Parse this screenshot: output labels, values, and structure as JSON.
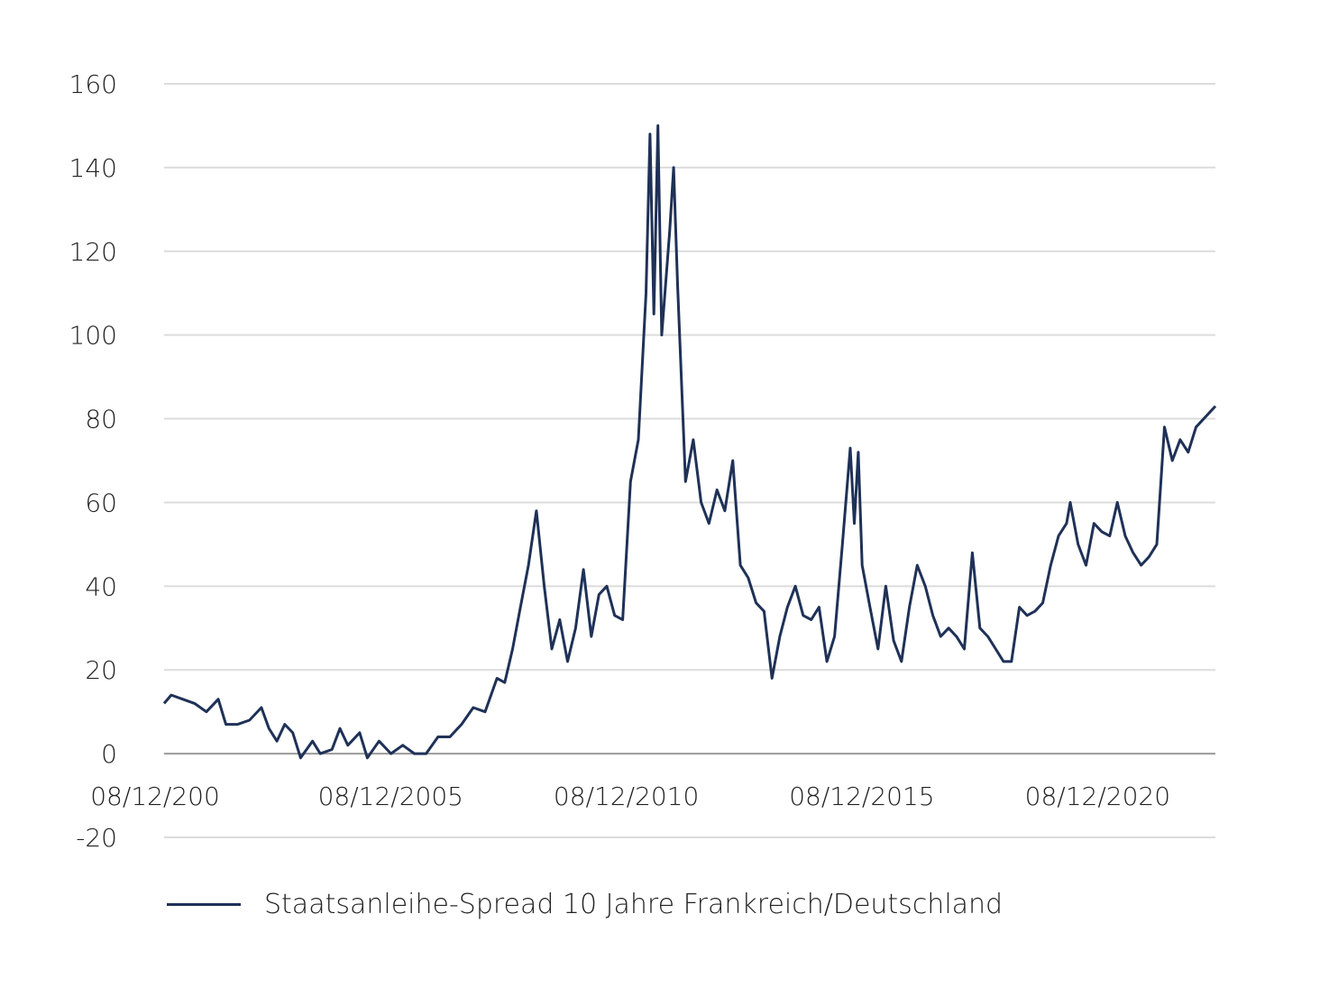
{
  "chart_data": {
    "type": "line",
    "title": "",
    "xlabel": "",
    "ylabel": "",
    "ylim": [
      -20,
      160
    ],
    "y_ticks": [
      160,
      140,
      120,
      100,
      80,
      60,
      40,
      20,
      0,
      -20
    ],
    "y_tick_labels": [
      "160",
      "140",
      "120",
      "100",
      "80",
      "60",
      "40",
      "20",
      "0",
      "-20"
    ],
    "x_tick_labels": [
      "08/12/200",
      "08/12/2005",
      "08/12/2010",
      "08/12/2015",
      "08/12/2020"
    ],
    "x_tick_dates": [
      "2000-12-08",
      "2005-12-08",
      "2010-12-08",
      "2015-12-08",
      "2020-12-08"
    ],
    "xlim": [
      "2000-12-08",
      "2023-03-31"
    ],
    "grid": true,
    "legend_position": "bottom-left",
    "series": [
      {
        "name": "Staatsanleihe-Spread 10 Jahre Frankreich/Deutschland",
        "color": "#1f3157",
        "points": [
          [
            "2000-12-08",
            12
          ],
          [
            "2001-02-01",
            14
          ],
          [
            "2001-05-01",
            13
          ],
          [
            "2001-08-01",
            12
          ],
          [
            "2001-11-01",
            10
          ],
          [
            "2002-02-01",
            13
          ],
          [
            "2002-04-01",
            7
          ],
          [
            "2002-07-01",
            7
          ],
          [
            "2002-10-01",
            8
          ],
          [
            "2003-01-01",
            11
          ],
          [
            "2003-03-01",
            6
          ],
          [
            "2003-05-01",
            3
          ],
          [
            "2003-07-01",
            7
          ],
          [
            "2003-09-01",
            5
          ],
          [
            "2003-11-01",
            -1
          ],
          [
            "2004-02-01",
            3
          ],
          [
            "2004-04-01",
            0
          ],
          [
            "2004-07-01",
            1
          ],
          [
            "2004-09-01",
            6
          ],
          [
            "2004-11-01",
            2
          ],
          [
            "2005-02-01",
            5
          ],
          [
            "2005-04-01",
            -1
          ],
          [
            "2005-07-01",
            3
          ],
          [
            "2005-10-01",
            0
          ],
          [
            "2006-01-01",
            2
          ],
          [
            "2006-04-01",
            0
          ],
          [
            "2006-07-01",
            0
          ],
          [
            "2006-10-01",
            4
          ],
          [
            "2007-01-01",
            4
          ],
          [
            "2007-04-01",
            7
          ],
          [
            "2007-07-01",
            11
          ],
          [
            "2007-10-01",
            10
          ],
          [
            "2008-01-01",
            18
          ],
          [
            "2008-03-01",
            17
          ],
          [
            "2008-05-01",
            25
          ],
          [
            "2008-07-01",
            35
          ],
          [
            "2008-09-01",
            45
          ],
          [
            "2008-11-01",
            58
          ],
          [
            "2009-01-01",
            40
          ],
          [
            "2009-03-01",
            25
          ],
          [
            "2009-05-01",
            32
          ],
          [
            "2009-07-01",
            22
          ],
          [
            "2009-09-01",
            30
          ],
          [
            "2009-11-01",
            44
          ],
          [
            "2010-01-01",
            28
          ],
          [
            "2010-03-01",
            38
          ],
          [
            "2010-05-01",
            40
          ],
          [
            "2010-07-01",
            33
          ],
          [
            "2010-09-01",
            32
          ],
          [
            "2010-11-01",
            65
          ],
          [
            "2011-01-01",
            75
          ],
          [
            "2011-03-01",
            110
          ],
          [
            "2011-04-01",
            148
          ],
          [
            "2011-05-01",
            105
          ],
          [
            "2011-06-01",
            150
          ],
          [
            "2011-07-01",
            100
          ],
          [
            "2011-09-01",
            125
          ],
          [
            "2011-10-01",
            140
          ],
          [
            "2011-11-01",
            112
          ],
          [
            "2012-01-01",
            65
          ],
          [
            "2012-03-01",
            75
          ],
          [
            "2012-05-01",
            60
          ],
          [
            "2012-07-01",
            55
          ],
          [
            "2012-09-01",
            63
          ],
          [
            "2012-11-01",
            58
          ],
          [
            "2013-01-01",
            70
          ],
          [
            "2013-03-01",
            45
          ],
          [
            "2013-05-01",
            42
          ],
          [
            "2013-07-01",
            36
          ],
          [
            "2013-09-01",
            34
          ],
          [
            "2013-11-01",
            18
          ],
          [
            "2014-01-01",
            28
          ],
          [
            "2014-03-01",
            35
          ],
          [
            "2014-05-01",
            40
          ],
          [
            "2014-07-01",
            33
          ],
          [
            "2014-09-01",
            32
          ],
          [
            "2014-11-01",
            35
          ],
          [
            "2015-01-01",
            22
          ],
          [
            "2015-03-01",
            28
          ],
          [
            "2015-05-01",
            50
          ],
          [
            "2015-07-01",
            73
          ],
          [
            "2015-08-01",
            55
          ],
          [
            "2015-09-01",
            72
          ],
          [
            "2015-10-01",
            45
          ],
          [
            "2015-12-01",
            35
          ],
          [
            "2016-02-01",
            25
          ],
          [
            "2016-04-01",
            40
          ],
          [
            "2016-06-01",
            27
          ],
          [
            "2016-08-01",
            22
          ],
          [
            "2016-10-01",
            35
          ],
          [
            "2016-12-01",
            45
          ],
          [
            "2017-02-01",
            40
          ],
          [
            "2017-04-01",
            33
          ],
          [
            "2017-06-01",
            28
          ],
          [
            "2017-08-01",
            30
          ],
          [
            "2017-10-01",
            28
          ],
          [
            "2017-12-01",
            25
          ],
          [
            "2018-02-01",
            48
          ],
          [
            "2018-04-01",
            30
          ],
          [
            "2018-06-01",
            28
          ],
          [
            "2018-08-01",
            25
          ],
          [
            "2018-10-01",
            22
          ],
          [
            "2018-12-01",
            22
          ],
          [
            "2019-02-01",
            35
          ],
          [
            "2019-04-01",
            33
          ],
          [
            "2019-06-01",
            34
          ],
          [
            "2019-08-01",
            36
          ],
          [
            "2019-10-01",
            45
          ],
          [
            "2019-12-01",
            52
          ],
          [
            "2020-02-01",
            55
          ],
          [
            "2020-03-01",
            60
          ],
          [
            "2020-05-01",
            50
          ],
          [
            "2020-07-01",
            45
          ],
          [
            "2020-09-01",
            55
          ],
          [
            "2020-11-01",
            53
          ],
          [
            "2021-01-01",
            52
          ],
          [
            "2021-03-01",
            60
          ],
          [
            "2021-05-01",
            52
          ],
          [
            "2021-07-01",
            48
          ],
          [
            "2021-09-01",
            45
          ],
          [
            "2021-11-01",
            47
          ],
          [
            "2022-01-01",
            50
          ],
          [
            "2022-03-01",
            78
          ],
          [
            "2022-05-01",
            70
          ],
          [
            "2022-07-01",
            75
          ],
          [
            "2022-09-01",
            72
          ],
          [
            "2022-11-01",
            78
          ],
          [
            "2023-03-31",
            83
          ]
        ]
      }
    ]
  }
}
